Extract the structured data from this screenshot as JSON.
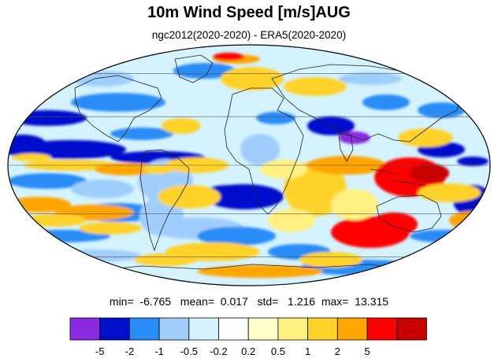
{
  "title": "10m Wind Speed [m/s]AUG",
  "subtitle": "ngc2012(2020-2020) - ERA5(2020-2020)",
  "stats": {
    "min_label": "min=",
    "min_value": "-6.765",
    "mean_label": "mean=",
    "mean_value": "0.017",
    "std_label": "std=",
    "std_value": "1.216",
    "max_label": "max=",
    "max_value": "13.315"
  },
  "colorbar": {
    "colors": [
      "#8a2be2",
      "#0010cd",
      "#2a8cf7",
      "#a0cefc",
      "#d4f3ff",
      "#ffffff",
      "#ffffcc",
      "#fff080",
      "#ffd22a",
      "#ffa500",
      "#ff0000",
      "#c80000"
    ],
    "labels": [
      "-5",
      "-2",
      "-1",
      "-0.5",
      "-0.2",
      "0.2",
      "0.5",
      "1",
      "2",
      "5"
    ]
  },
  "map": {
    "projection": "mollweide",
    "graticule_lat": [
      -60,
      -30,
      0,
      30,
      60
    ],
    "graticule_lon": [
      -120,
      -60,
      0,
      60,
      120
    ]
  }
}
